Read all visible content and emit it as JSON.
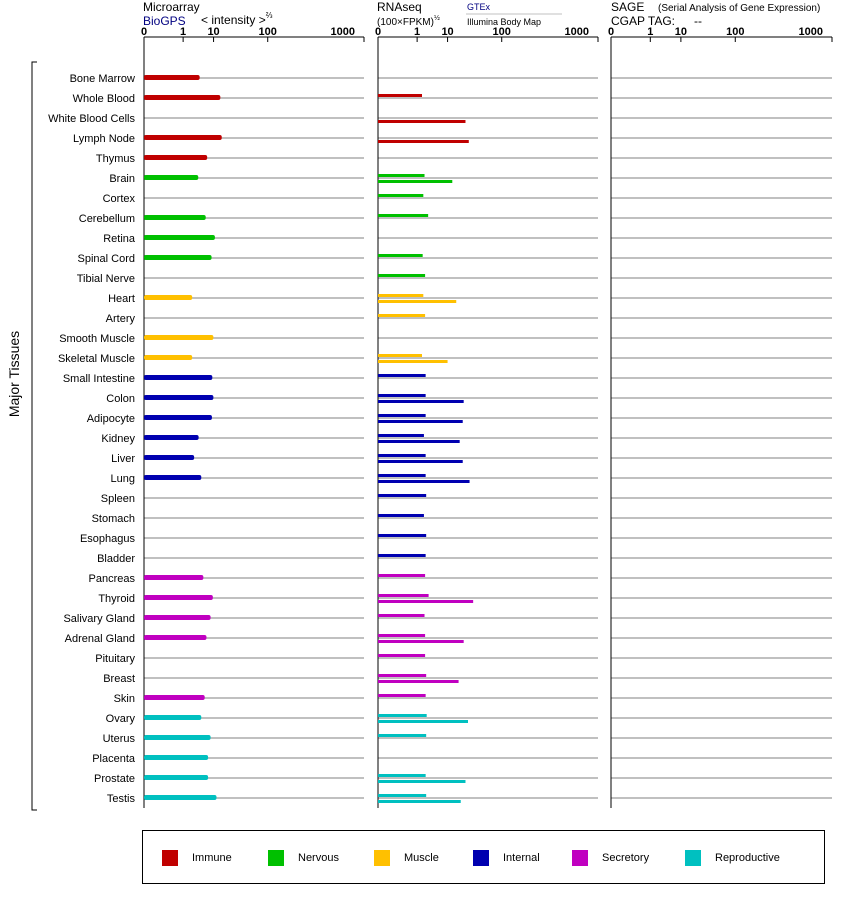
{
  "panels": {
    "microarray": {
      "title": "Microarray",
      "source": "BioGPS",
      "measure": "< intensity >",
      "measure_exp": "⅔",
      "ticks": [
        "0",
        "1",
        "10",
        "100",
        "1000"
      ]
    },
    "rnaseq": {
      "title": "RNAseq",
      "measure": "(100×FPKM)",
      "measure_exp": "½",
      "source_primary": "GTEx",
      "source_secondary": "Illumina Body Map",
      "ticks": [
        "0",
        "1",
        "10",
        "100",
        "1000"
      ]
    },
    "sage": {
      "title": "SAGE",
      "subtitle": "(Serial Analysis of Gene Expression)",
      "tag_label": "CGAP TAG:",
      "tag_value": "--",
      "ticks": [
        "0",
        "1",
        "10",
        "100",
        "1000"
      ]
    }
  },
  "group_label": "Major Tissues",
  "legend": [
    {
      "label": "Immune",
      "color": "#c00000"
    },
    {
      "label": "Nervous",
      "color": "#00c000"
    },
    {
      "label": "Muscle",
      "color": "#ffc000"
    },
    {
      "label": "Internal",
      "color": "#0000b0"
    },
    {
      "label": "Secretory",
      "color": "#c000c0"
    },
    {
      "label": "Reproductive",
      "color": "#00c0c0"
    }
  ],
  "chart_data": {
    "type": "bar",
    "scale": "power (axis ticks 0, 1, 10, 100, 1000)",
    "xlim": [
      0,
      1000
    ],
    "categories": [
      "Bone Marrow",
      "Whole Blood",
      "White Blood Cells",
      "Lymph Node",
      "Thymus",
      "Brain",
      "Cortex",
      "Cerebellum",
      "Retina",
      "Spinal Cord",
      "Tibial Nerve",
      "Heart",
      "Artery",
      "Smooth Muscle",
      "Skeletal Muscle",
      "Small Intestine",
      "Colon",
      "Adipocyte",
      "Kidney",
      "Liver",
      "Lung",
      "Spleen",
      "Stomach",
      "Esophagus",
      "Bladder",
      "Pancreas",
      "Thyroid",
      "Salivary Gland",
      "Adrenal Gland",
      "Pituitary",
      "Breast",
      "Skin",
      "Ovary",
      "Uterus",
      "Placenta",
      "Prostate",
      "Testis"
    ],
    "system": [
      "Immune",
      "Immune",
      "Immune",
      "Immune",
      "Immune",
      "Nervous",
      "Nervous",
      "Nervous",
      "Nervous",
      "Nervous",
      "Nervous",
      "Muscle",
      "Muscle",
      "Muscle",
      "Muscle",
      "Internal",
      "Internal",
      "Internal",
      "Internal",
      "Internal",
      "Internal",
      "Internal",
      "Internal",
      "Internal",
      "Internal",
      "Secretory",
      "Secretory",
      "Secretory",
      "Secretory",
      "Secretory",
      "Secretory",
      "Secretory",
      "Reproductive",
      "Reproductive",
      "Reproductive",
      "Reproductive",
      "Reproductive"
    ],
    "series": [
      {
        "name": "BioGPS",
        "values": [
          4.1,
          14.5,
          null,
          15.6,
          6.8,
          3.7,
          null,
          6.2,
          10.8,
          8.9,
          null,
          2.3,
          null,
          9.9,
          2.3,
          9.3,
          9.9,
          9.1,
          3.8,
          2.7,
          4.6,
          null,
          null,
          null,
          null,
          5.3,
          9.6,
          8.4,
          6.5,
          null,
          null,
          5.8,
          4.6,
          8.4,
          7.2,
          7.2,
          11.8
        ]
      },
      {
        "name": "GTEx",
        "values": [
          null,
          1.6,
          null,
          null,
          null,
          2.0,
          1.8,
          2.7,
          null,
          1.7,
          2.1,
          1.8,
          2.1,
          null,
          1.6,
          2.2,
          2.2,
          2.2,
          1.9,
          2.2,
          2.2,
          2.3,
          1.9,
          2.3,
          2.2,
          2.1,
          2.8,
          2.0,
          2.1,
          2.1,
          2.3,
          2.2,
          2.4,
          2.3,
          null,
          2.2,
          2.3
        ]
      },
      {
        "name": "Illumina Body Map",
        "values": [
          null,
          null,
          25,
          29,
          null,
          13,
          null,
          null,
          null,
          null,
          null,
          16,
          null,
          null,
          10,
          null,
          23,
          22,
          19,
          22,
          30,
          null,
          null,
          null,
          null,
          null,
          35,
          null,
          23,
          null,
          18,
          null,
          28,
          null,
          null,
          25,
          20
        ]
      },
      {
        "name": "SAGE",
        "values": [
          null,
          null,
          null,
          null,
          null,
          null,
          null,
          null,
          null,
          null,
          null,
          null,
          null,
          null,
          null,
          null,
          null,
          null,
          null,
          null,
          null,
          null,
          null,
          null,
          null,
          null,
          null,
          null,
          null,
          null,
          null,
          null,
          null,
          null,
          null,
          null,
          null
        ]
      }
    ]
  }
}
